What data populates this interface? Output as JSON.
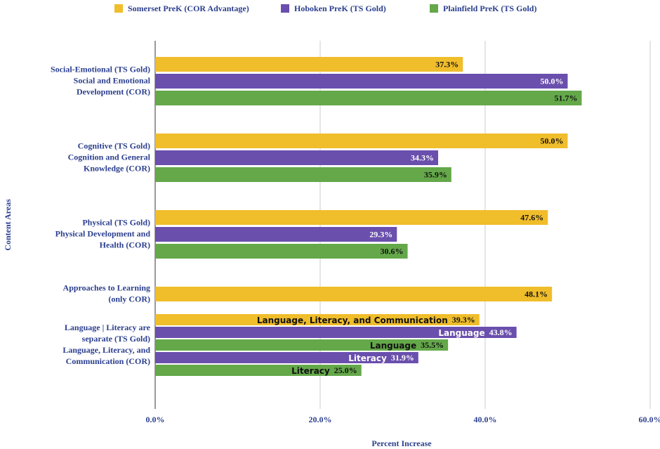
{
  "chart_data": {
    "type": "bar",
    "orientation": "horizontal",
    "legend": [
      {
        "name": "Somerset PreK (COR Advantage)",
        "color": "#f0bd2b"
      },
      {
        "name": "Hoboken PreK (TS Gold)",
        "color": "#6a4fad"
      },
      {
        "name": "Plainfield PreK (TS Gold)",
        "color": "#64a84a"
      }
    ],
    "groups": [
      {
        "label": [
          "Social-Emotional (TS Gold)",
          "Social and Emotional",
          "Development (COR)"
        ],
        "bars": [
          {
            "color": "#f0bd2b",
            "value": 37.3,
            "value_label": "37.3%"
          },
          {
            "color": "#6a4fad",
            "value": 50.0,
            "value_label": "50.0%"
          },
          {
            "color": "#64a84a",
            "value": 51.7,
            "value_label": "51.7%"
          }
        ]
      },
      {
        "label": [
          "Cognitive (TS Gold)",
          "Cognition and General",
          "Knowledge (COR)"
        ],
        "bars": [
          {
            "color": "#f0bd2b",
            "value": 50.0,
            "value_label": "50.0%"
          },
          {
            "color": "#6a4fad",
            "value": 34.3,
            "value_label": "34.3%"
          },
          {
            "color": "#64a84a",
            "value": 35.9,
            "value_label": "35.9%"
          }
        ]
      },
      {
        "label": [
          "Physical (TS Gold)",
          "Physical Development and",
          "Health (COR)"
        ],
        "bars": [
          {
            "color": "#f0bd2b",
            "value": 47.6,
            "value_label": "47.6%"
          },
          {
            "color": "#6a4fad",
            "value": 29.3,
            "value_label": "29.3%"
          },
          {
            "color": "#64a84a",
            "value": 30.6,
            "value_label": "30.6%"
          }
        ]
      },
      {
        "label": [
          "Approaches to Learning",
          "(only COR)"
        ],
        "bars": [
          {
            "color": "#f0bd2b",
            "value": 48.1,
            "value_label": "48.1%"
          }
        ]
      },
      {
        "label": [
          "Language | Literacy are",
          "separate (TS Gold)",
          "Language, Literacy, and",
          "Communication (COR)"
        ],
        "bars": [
          {
            "color": "#f0bd2b",
            "tag": "Language, Literacy, and Communication",
            "value": 39.3,
            "value_label": "39.3%"
          },
          {
            "color": "#6a4fad",
            "tag": "Language",
            "value": 43.8,
            "value_label": "43.8%"
          },
          {
            "color": "#64a84a",
            "tag": "Language",
            "value": 35.5,
            "value_label": "35.5%"
          },
          {
            "color": "#6a4fad",
            "tag": "Literacy",
            "value": 31.9,
            "value_label": "31.9%"
          },
          {
            "color": "#64a84a",
            "tag": "Literacy",
            "value": 25.0,
            "value_label": "25.0%"
          }
        ]
      }
    ],
    "xlabel": "Percent Increase",
    "ylabel": "Content Areas",
    "xlim": [
      0,
      60
    ],
    "xticks": [
      {
        "value": 0,
        "label": "0.0%"
      },
      {
        "value": 20,
        "label": "20.0%"
      },
      {
        "value": 40,
        "label": "40.0%"
      },
      {
        "value": 60,
        "label": "60.0%"
      }
    ],
    "grid": true
  }
}
